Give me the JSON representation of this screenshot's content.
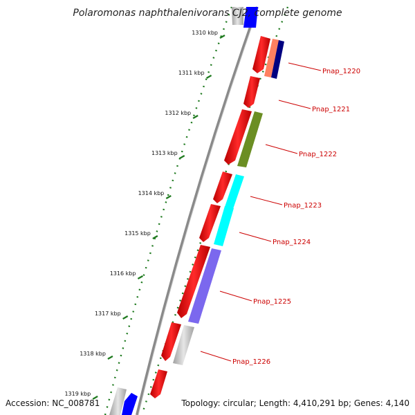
{
  "title": "Polaromonas naphthalenivorans CJ2, complete genome",
  "footer": {
    "accession": "Accession: NC_008781",
    "summary": "Topology: circular; Length: 4,410,291 bp; Genes: 4,140"
  },
  "axis": {
    "unit": "kbp",
    "ticks": [
      "1310 kbp",
      "1311 kbp",
      "1312 kbp",
      "1313 kbp",
      "1314 kbp",
      "1315 kbp",
      "1316 kbp",
      "1317 kbp",
      "1318 kbp",
      "1319 kbp"
    ]
  },
  "colors": {
    "backbone": "#8a8a8a",
    "dotted_track": "#1f7a1f",
    "gene_label": "#cc0000",
    "cds": "#ff0000"
  },
  "genes": [
    {
      "label": "Pnap_1220",
      "color": "#ff8060"
    },
    {
      "label": "Pnap_1221",
      "color": "#ff0000"
    },
    {
      "label": "Pnap_1222",
      "color": "#6b8e23"
    },
    {
      "label": "Pnap_1223",
      "color": "#00ffff"
    },
    {
      "label": "Pnap_1224",
      "color": "#00ffff"
    },
    {
      "label": "Pnap_1225",
      "color": "#7b68ee"
    },
    {
      "label": "Pnap_1226",
      "color": "#c0c0c0"
    }
  ]
}
